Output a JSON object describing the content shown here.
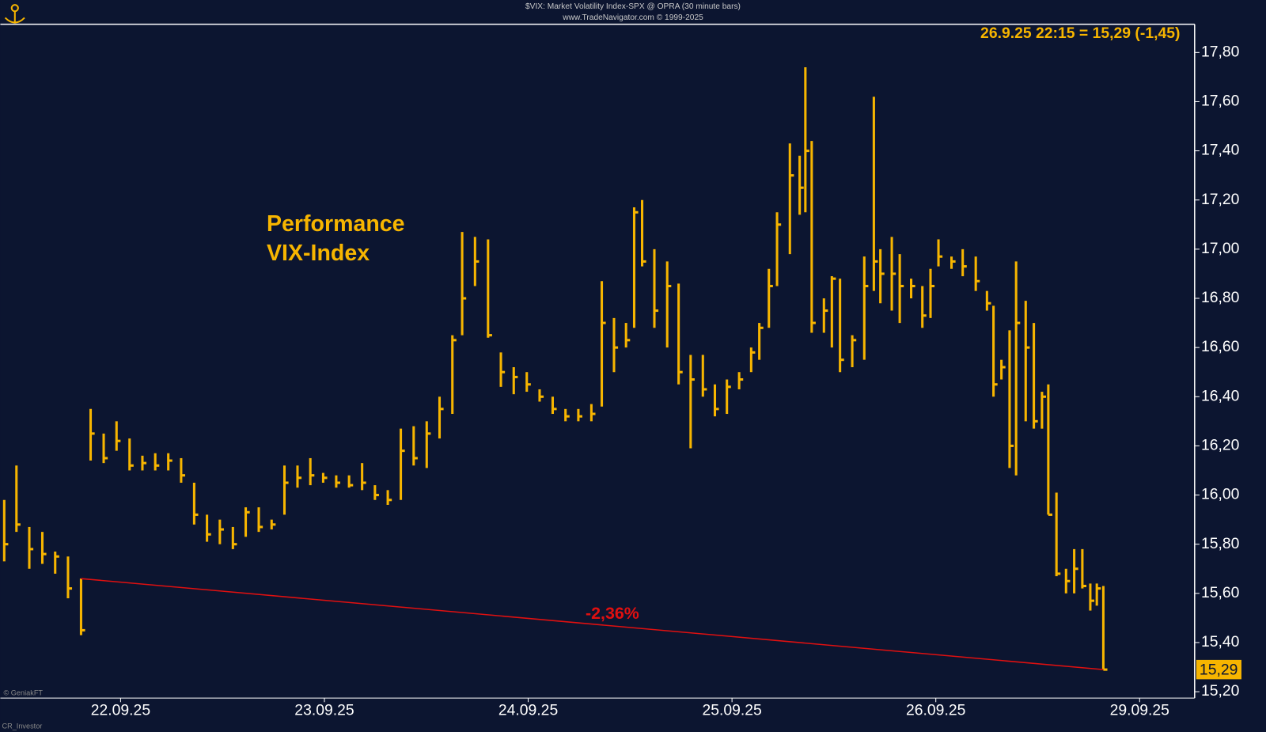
{
  "chart_data": {
    "type": "ohlc",
    "title": "$VIX:  Market Volatility Index-SPX @ OPRA  (30 minute bars)",
    "subtitle": "www.TradeNavigator.com © 1999-2025",
    "quote": "26.9.25 22:15 = 15,29 (-1,45)",
    "annotation": [
      "Performance",
      "VIX-Index"
    ],
    "last_label": "15,29",
    "credits": [
      "© GeniakFT",
      "CR_Investor"
    ],
    "color": "#f7b500",
    "x": [
      -0.571,
      -0.511,
      -0.448,
      -0.384,
      -0.321,
      -0.258,
      -0.194,
      -0.147,
      -0.083,
      -0.02,
      0.044,
      0.107,
      0.17,
      0.234,
      0.297,
      0.361,
      0.424,
      0.487,
      0.551,
      0.614,
      0.678,
      0.741,
      0.804,
      0.868,
      0.931,
      0.994,
      1.058,
      1.121,
      1.185,
      1.248,
      1.311,
      1.375,
      1.438,
      1.502,
      1.565,
      1.628,
      1.676,
      1.739,
      1.803,
      1.866,
      1.929,
      1.993,
      2.056,
      2.12,
      2.183,
      2.246,
      2.31,
      2.361,
      2.421,
      2.48,
      2.52,
      2.559,
      2.619,
      2.682,
      2.738,
      2.797,
      2.857,
      2.916,
      2.975,
      3.035,
      3.094,
      3.134,
      3.181,
      3.221,
      3.284,
      3.332,
      3.36,
      3.391,
      3.451,
      3.49,
      3.53,
      3.59,
      3.649,
      3.696,
      3.728,
      3.784,
      3.823,
      3.879,
      3.934,
      3.974,
      4.013,
      4.077,
      4.132,
      4.196,
      4.251,
      4.283,
      4.322,
      4.362,
      4.394,
      4.441,
      4.481,
      4.521,
      4.552,
      4.592,
      4.639,
      4.679,
      4.719,
      4.758,
      4.79,
      4.822
    ],
    "high": [
      15.98,
      16.12,
      15.87,
      15.85,
      15.77,
      15.75,
      15.66,
      16.35,
      16.25,
      16.3,
      16.23,
      16.16,
      16.17,
      16.17,
      16.15,
      16.05,
      15.92,
      15.9,
      15.87,
      15.95,
      15.95,
      15.9,
      16.12,
      16.12,
      16.15,
      16.09,
      16.08,
      16.08,
      16.13,
      16.04,
      16.02,
      16.27,
      16.28,
      16.3,
      16.4,
      16.65,
      17.07,
      17.05,
      17.04,
      16.58,
      16.52,
      16.5,
      16.43,
      16.4,
      16.35,
      16.35,
      16.37,
      16.87,
      16.72,
      16.7,
      17.17,
      17.2,
      17.0,
      16.95,
      16.86,
      16.57,
      16.57,
      16.45,
      16.47,
      16.5,
      16.6,
      16.7,
      16.92,
      17.15,
      17.43,
      17.38,
      17.74,
      17.44,
      16.8,
      16.89,
      16.88,
      16.65,
      16.97,
      17.62,
      17.0,
      17.05,
      16.98,
      16.88,
      16.85,
      16.92,
      17.04,
      16.97,
      17.0,
      16.97,
      16.83,
      16.77,
      16.55,
      16.67,
      16.95,
      16.79,
      16.7,
      16.42,
      16.45,
      16.01,
      15.7,
      15.78,
      15.78,
      15.64,
      15.64,
      15.63
    ],
    "low": [
      15.73,
      15.85,
      15.7,
      15.72,
      15.68,
      15.58,
      15.43,
      16.14,
      16.13,
      16.18,
      16.1,
      16.1,
      16.1,
      16.1,
      16.05,
      15.88,
      15.81,
      15.8,
      15.78,
      15.83,
      15.85,
      15.86,
      15.92,
      16.03,
      16.04,
      16.05,
      16.03,
      16.03,
      16.02,
      15.98,
      15.96,
      15.98,
      16.12,
      16.11,
      16.23,
      16.33,
      16.65,
      16.85,
      16.64,
      16.44,
      16.41,
      16.42,
      16.38,
      16.33,
      16.3,
      16.3,
      16.3,
      16.36,
      16.5,
      16.6,
      16.68,
      16.93,
      16.68,
      16.6,
      16.45,
      16.19,
      16.4,
      16.32,
      16.33,
      16.43,
      16.5,
      16.55,
      16.68,
      16.85,
      16.98,
      17.14,
      17.15,
      16.66,
      16.66,
      16.6,
      16.5,
      16.52,
      16.55,
      16.83,
      16.78,
      16.75,
      16.7,
      16.8,
      16.68,
      16.72,
      16.93,
      16.92,
      16.89,
      16.83,
      16.75,
      16.4,
      16.47,
      16.11,
      16.08,
      16.3,
      16.27,
      16.27,
      15.92,
      15.67,
      15.6,
      15.6,
      15.62,
      15.53,
      15.55,
      15.29
    ],
    "close": [
      15.8,
      15.88,
      15.78,
      15.76,
      15.75,
      15.62,
      15.45,
      16.25,
      16.15,
      16.22,
      16.12,
      16.13,
      16.12,
      16.14,
      16.08,
      15.92,
      15.84,
      15.86,
      15.8,
      15.93,
      15.87,
      15.88,
      16.05,
      16.07,
      16.08,
      16.07,
      16.05,
      16.04,
      16.05,
      16.0,
      15.98,
      16.18,
      16.15,
      16.25,
      16.35,
      16.63,
      16.8,
      16.95,
      16.65,
      16.5,
      16.48,
      16.45,
      16.4,
      16.35,
      16.32,
      16.32,
      16.33,
      16.7,
      16.6,
      16.63,
      17.15,
      16.95,
      16.75,
      16.85,
      16.5,
      16.47,
      16.43,
      16.35,
      16.44,
      16.47,
      16.58,
      16.68,
      16.85,
      17.1,
      17.3,
      17.25,
      17.4,
      16.7,
      16.75,
      16.88,
      16.55,
      16.63,
      16.85,
      16.95,
      16.9,
      16.9,
      16.85,
      16.85,
      16.73,
      16.85,
      16.97,
      16.95,
      16.93,
      16.87,
      16.78,
      16.45,
      16.52,
      16.2,
      16.7,
      16.6,
      16.3,
      16.4,
      15.92,
      15.68,
      15.65,
      15.7,
      15.63,
      15.57,
      15.62,
      15.29
    ],
    "trendline": {
      "x": [
        -0.194,
        4.822
      ],
      "y": [
        15.66,
        15.29
      ],
      "label": "-2,36%",
      "color": "#e01010"
    },
    "xlim": [
      -0.59,
      5.27
    ],
    "xticks": [
      {
        "value": 0,
        "label": "22.09.25"
      },
      {
        "value": 1,
        "label": "23.09.25"
      },
      {
        "value": 2,
        "label": "24.09.25"
      },
      {
        "value": 3,
        "label": "25.09.25"
      },
      {
        "value": 4,
        "label": "26.09.25"
      },
      {
        "value": 5,
        "label": "29.09.25"
      }
    ],
    "ylim": [
      15.174,
      17.915
    ],
    "yticks": [
      {
        "value": 15.2,
        "label": "15,20"
      },
      {
        "value": 15.4,
        "label": "15,40"
      },
      {
        "value": 15.6,
        "label": "15,60"
      },
      {
        "value": 15.8,
        "label": "15,80"
      },
      {
        "value": 16.0,
        "label": "16,00"
      },
      {
        "value": 16.2,
        "label": "16,20"
      },
      {
        "value": 16.4,
        "label": "16,40"
      },
      {
        "value": 16.6,
        "label": "16,60"
      },
      {
        "value": 16.8,
        "label": "16,80"
      },
      {
        "value": 17.0,
        "label": "17,00"
      },
      {
        "value": 17.2,
        "label": "17,20"
      },
      {
        "value": 17.4,
        "label": "17,40"
      },
      {
        "value": 17.6,
        "label": "17,60"
      },
      {
        "value": 17.8,
        "label": "17,80"
      }
    ]
  }
}
